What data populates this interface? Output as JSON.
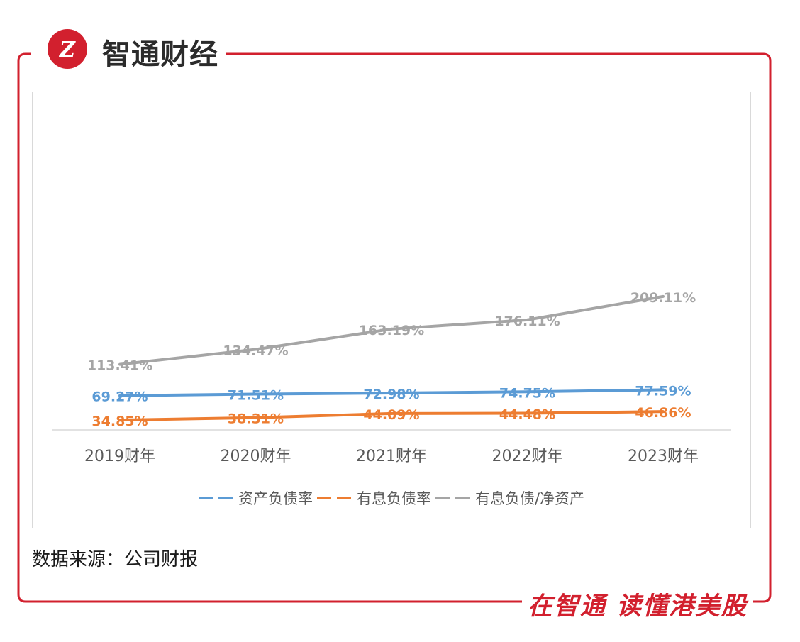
{
  "brand": {
    "logo_icon": "zhitong-logo-icon",
    "name": "智通财经",
    "slogan": "在智通 读懂港美股",
    "accent_color": "#d2202e"
  },
  "source_note": "数据来源：公司财报",
  "chart_data": {
    "type": "line",
    "title": "",
    "xlabel": "",
    "ylabel": "",
    "categories": [
      "2019财年",
      "2020财年",
      "2021财年",
      "2022财年",
      "2023财年"
    ],
    "ylim": [
      0,
      240
    ],
    "grid": false,
    "legend": "bottom",
    "series": [
      {
        "name": "资产负债率",
        "color": "#5b9bd5",
        "values": [
          69.27,
          71.51,
          72.98,
          74.75,
          77.59
        ],
        "labels": [
          "69.27%",
          "71.51%",
          "72.98%",
          "74.75%",
          "77.59%"
        ]
      },
      {
        "name": "有息负债率",
        "color": "#ed7d31",
        "values": [
          34.85,
          38.31,
          44.09,
          44.48,
          46.86
        ],
        "labels": [
          "34.85%",
          "38.31%",
          "44.09%",
          "44.48%",
          "46.86%"
        ]
      },
      {
        "name": "有息负债/净资产",
        "color": "#a5a5a5",
        "values": [
          113.41,
          134.47,
          163.19,
          176.11,
          209.11
        ],
        "labels": [
          "113.41%",
          "134.47%",
          "163.19%",
          "176.11%",
          "209.11%"
        ]
      }
    ]
  }
}
